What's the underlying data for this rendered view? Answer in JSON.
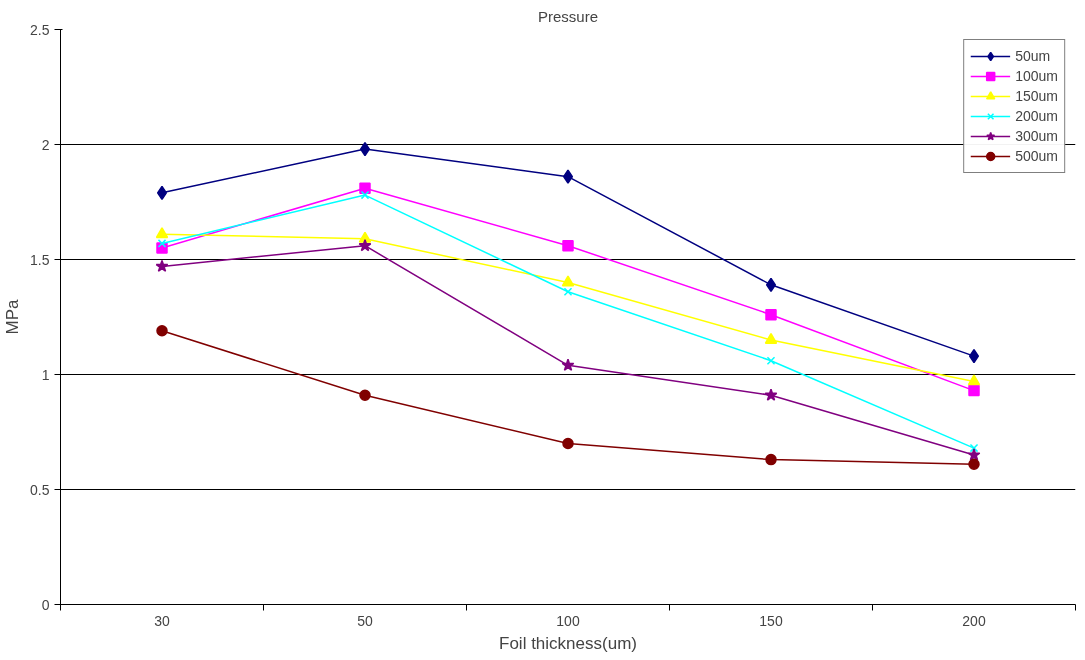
{
  "chart_data": {
    "type": "line",
    "title": "Pressure",
    "xlabel": "Foil thickness(um)",
    "ylabel": "MPa",
    "categories": [
      "30",
      "50",
      "100",
      "150",
      "200"
    ],
    "ylim": [
      0,
      2.5
    ],
    "yticks": [
      0,
      0.5,
      1,
      1.5,
      2,
      2.5
    ],
    "grid": "y",
    "legend": "top right",
    "series": [
      {
        "name": "50um",
        "color": "#000080",
        "marker": "diamond",
        "values": [
          1.79,
          1.98,
          1.86,
          1.39,
          1.08
        ]
      },
      {
        "name": "100um",
        "color": "#ff00ff",
        "marker": "square",
        "values": [
          1.55,
          1.81,
          1.56,
          1.26,
          0.93
        ]
      },
      {
        "name": "150um",
        "color": "#ffff00",
        "marker": "triangle",
        "values": [
          1.61,
          1.59,
          1.4,
          1.15,
          0.97
        ]
      },
      {
        "name": "200um",
        "color": "#00ffff",
        "marker": "cross",
        "values": [
          1.57,
          1.78,
          1.36,
          1.06,
          0.68
        ]
      },
      {
        "name": "300um",
        "color": "#800080",
        "marker": "star",
        "values": [
          1.47,
          1.56,
          1.04,
          0.91,
          0.65
        ]
      },
      {
        "name": "500um",
        "color": "#800000",
        "marker": "circle",
        "values": [
          1.19,
          0.91,
          0.7,
          0.63,
          0.61
        ]
      }
    ]
  }
}
